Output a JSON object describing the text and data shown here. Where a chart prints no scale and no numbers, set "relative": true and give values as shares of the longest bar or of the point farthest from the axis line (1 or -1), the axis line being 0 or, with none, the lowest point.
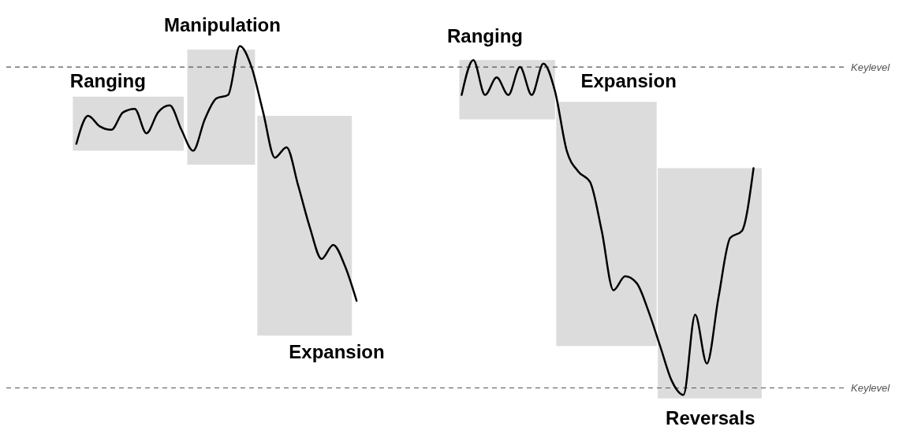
{
  "chart_data": {
    "type": "line",
    "relative": true,
    "categories": [
      null,
      null,
      null,
      null,
      null,
      null,
      null,
      null,
      null,
      null,
      null,
      null,
      null,
      null,
      null,
      null,
      null,
      null,
      null,
      null,
      null,
      null,
      null,
      null,
      null,
      null,
      null,
      null,
      null,
      null,
      null,
      null,
      null,
      null,
      null,
      null,
      null,
      null,
      null,
      null,
      null,
      null,
      null,
      null,
      null,
      null,
      null,
      null,
      null,
      null,
      null,
      null,
      null,
      null,
      null,
      null,
      null,
      null,
      null
    ],
    "series": [
      {
        "color": "#000000",
        "values": [
          0.72,
          0.8,
          0.77,
          0.76,
          0.81,
          0.82,
          0.75,
          0.81,
          0.83,
          0.76,
          0.7,
          0.79,
          0.85,
          0.86,
          1.0,
          0.94,
          0.81,
          0.68,
          0.71,
          0.6,
          0.48,
          0.39,
          0.43,
          0.37,
          0.27,
          null,
          null,
          null,
          null,
          null,
          null,
          null,
          null,
          null,
          null,
          null,
          null,
          null,
          null,
          null,
          null,
          null,
          null,
          null,
          null,
          null,
          null,
          null,
          null,
          null,
          null,
          null,
          null,
          null,
          null,
          null,
          null,
          null,
          null
        ]
      },
      {
        "color": "#000000",
        "values": [
          null,
          null,
          null,
          null,
          null,
          null,
          null,
          null,
          null,
          null,
          null,
          null,
          null,
          null,
          null,
          null,
          null,
          null,
          null,
          null,
          null,
          null,
          null,
          null,
          null,
          null,
          null,
          null,
          null,
          null,
          null,
          null,
          null,
          0.86,
          0.96,
          0.86,
          0.91,
          0.86,
          0.94,
          0.86,
          0.95,
          0.87,
          0.7,
          0.64,
          0.61,
          0.47,
          0.3,
          0.34,
          0.32,
          0.24,
          0.14,
          0.04,
          0,
          0.23,
          0.09,
          0.28,
          0.45,
          0.47,
          0.65
        ]
      }
    ],
    "annotations": [
      "Ranging",
      "Manipulation",
      "Expansion",
      "Ranging",
      "Expansion",
      "Reversals"
    ],
    "ref_lines": [
      {
        "axis": "y",
        "value": 0.94,
        "label": "Keylevel",
        "color": "#555555",
        "line_style": "dashed"
      },
      {
        "axis": "y",
        "value": 0.02,
        "label": "Keylevel",
        "color": "#555555",
        "line_style": "dashed"
      }
    ],
    "grid": false,
    "legend": false,
    "marker": "none",
    "line_style": "solid",
    "tick_labels": false
  }
}
